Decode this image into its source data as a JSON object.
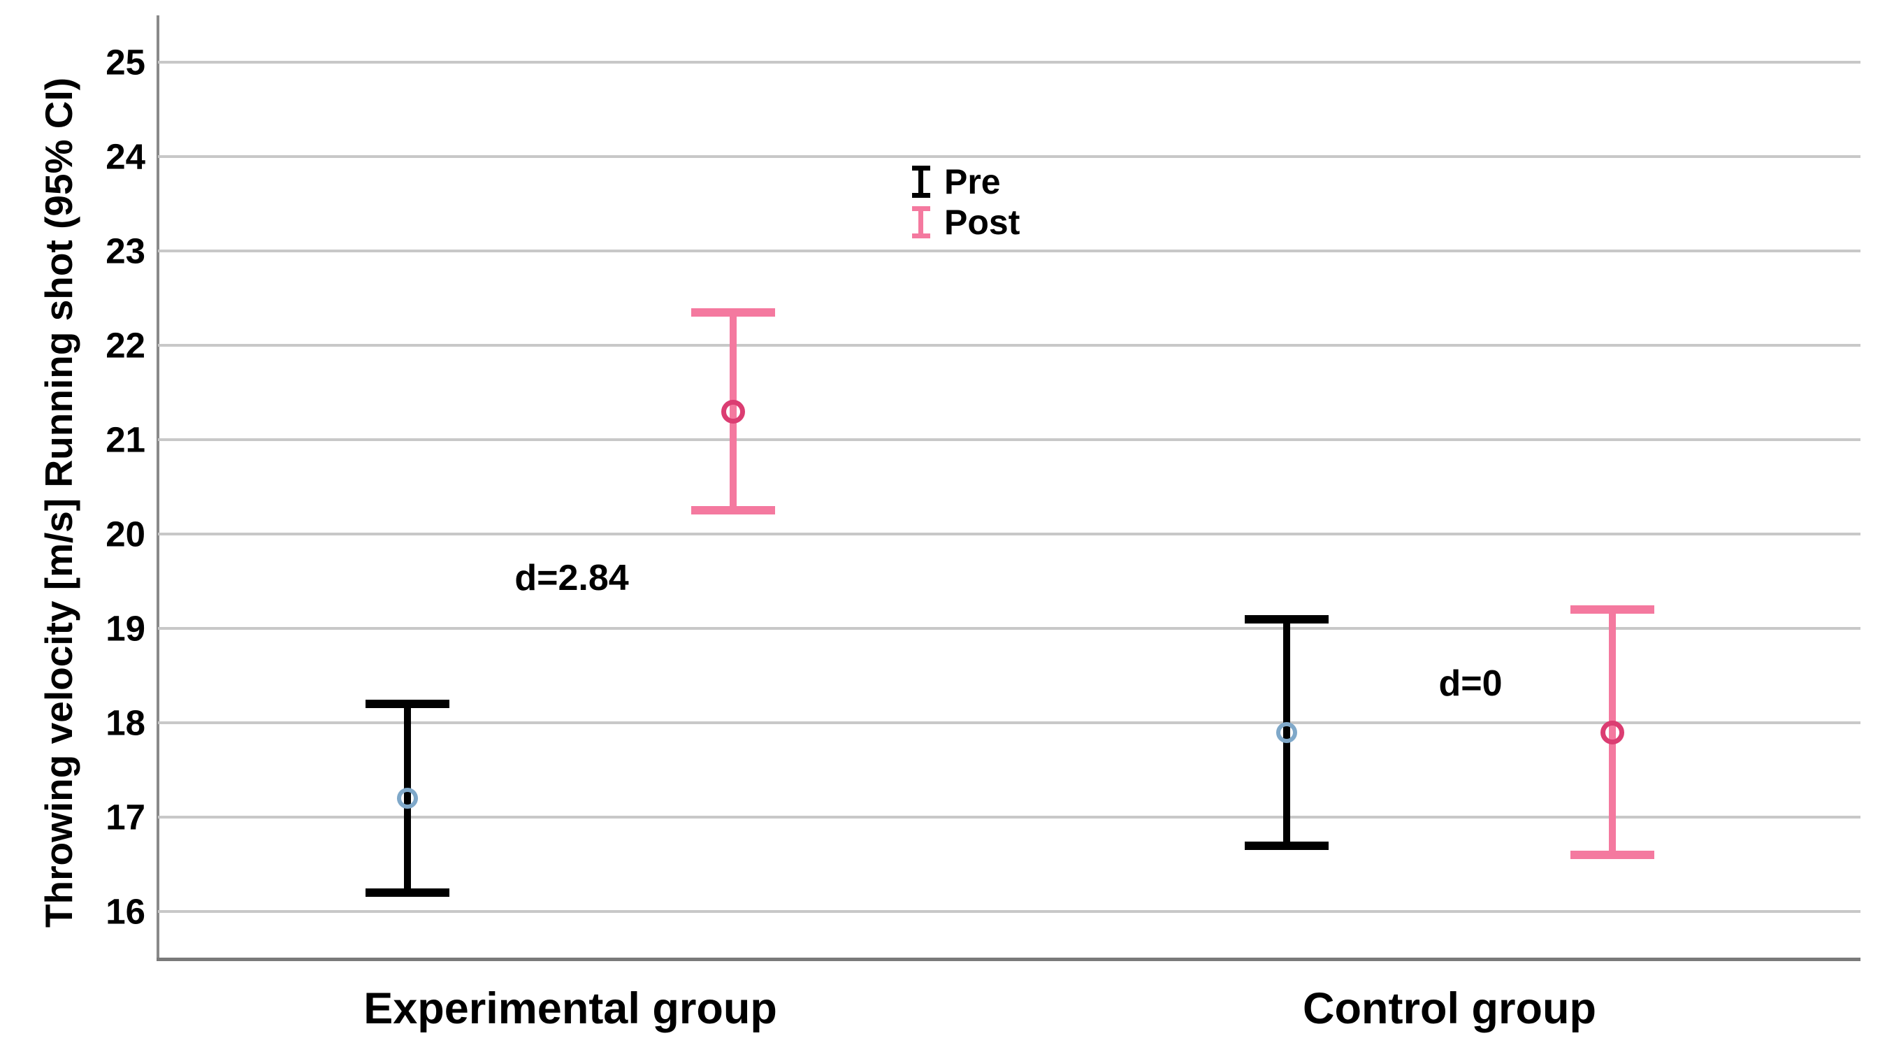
{
  "chart_data": {
    "type": "errorbar",
    "title": "",
    "ylabel": "Throwing velocity [m/s] Running shot (95% CI)",
    "xlabel": "",
    "ylim": [
      15.4,
      25.6
    ],
    "yticks": [
      25,
      24,
      23,
      22,
      21,
      20,
      19,
      18,
      17,
      16
    ],
    "grid": true,
    "legend_position": "upper-middle",
    "categories": [
      "Experimental group",
      "Control group"
    ],
    "series": [
      {
        "name": "Pre",
        "color": "#000000",
        "marker_color": "#7fa8c9",
        "means": [
          17.2,
          17.9
        ],
        "ci_low": [
          16.2,
          16.7
        ],
        "ci_high": [
          18.2,
          19.1
        ]
      },
      {
        "name": "Post",
        "color": "#f4799f",
        "marker_color": "#db3d72",
        "means": [
          21.3,
          17.9
        ],
        "ci_low": [
          20.25,
          16.6
        ],
        "ci_high": [
          22.35,
          19.2
        ]
      }
    ],
    "annotations": [
      {
        "text": "d=2.84",
        "group": "Experimental group"
      },
      {
        "text": "d=0",
        "group": "Control group"
      }
    ],
    "colors": {
      "gridline": "#c8c8c8",
      "axis_line": "#8a8a8a",
      "frame_line": "#7a7a7a",
      "text": "#000000"
    }
  }
}
